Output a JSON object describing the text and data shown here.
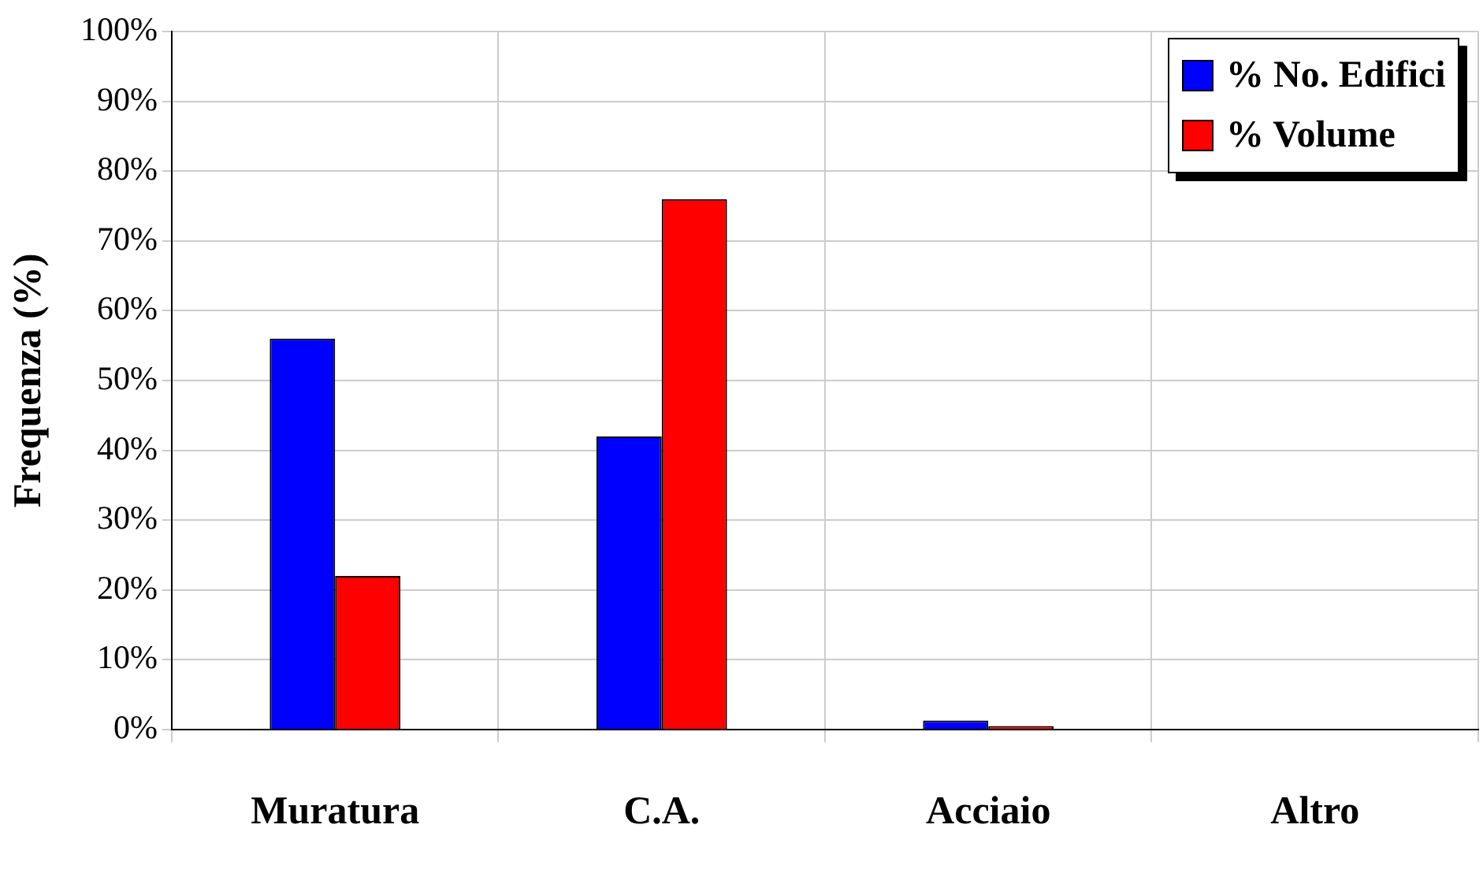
{
  "chart_data": {
    "type": "bar",
    "ylabel": "Frequenza (%)",
    "categories": [
      "Muratura",
      "C.A.",
      "Acciaio",
      "Altro"
    ],
    "series": [
      {
        "name": "% No. Edifici",
        "color": "#0000ff",
        "values": [
          56,
          42,
          1.3,
          0
        ]
      },
      {
        "name": "% Volume",
        "color": "#ff0000",
        "values": [
          22,
          76,
          0.5,
          0
        ]
      }
    ],
    "ylim": [
      0,
      100
    ],
    "yticks": [
      {
        "value": 0,
        "label": "0%"
      },
      {
        "value": 10,
        "label": "10%"
      },
      {
        "value": 20,
        "label": "20%"
      },
      {
        "value": 30,
        "label": "30%"
      },
      {
        "value": 40,
        "label": "40%"
      },
      {
        "value": 50,
        "label": "50%"
      },
      {
        "value": 60,
        "label": "60%"
      },
      {
        "value": 70,
        "label": "70%"
      },
      {
        "value": 80,
        "label": "80%"
      },
      {
        "value": 90,
        "label": "90%"
      },
      {
        "value": 100,
        "label": "100%"
      }
    ],
    "grid": true,
    "legend": "top right"
  }
}
